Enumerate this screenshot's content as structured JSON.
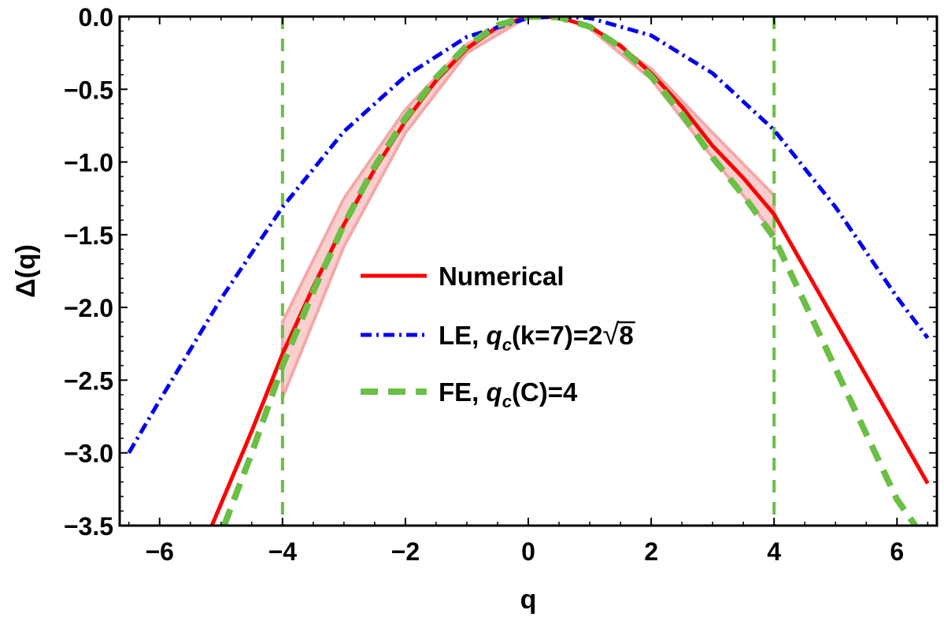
{
  "chart_data": {
    "type": "line",
    "xlabel": "q",
    "ylabel": "Δ(q)",
    "xlim": [
      -6.65,
      6.65
    ],
    "ylim": [
      -3.5,
      0.0
    ],
    "x_ticks": [
      {
        "value": -6,
        "label": "−6"
      },
      {
        "value": -4,
        "label": "−4"
      },
      {
        "value": -2,
        "label": "−2"
      },
      {
        "value": 0,
        "label": "0"
      },
      {
        "value": 2,
        "label": "2"
      },
      {
        "value": 4,
        "label": "4"
      },
      {
        "value": 6,
        "label": "6"
      }
    ],
    "y_ticks": [
      {
        "value": 0.0,
        "label": "0.0"
      },
      {
        "value": -0.5,
        "label": "−0.5"
      },
      {
        "value": -1.0,
        "label": "−1.0"
      },
      {
        "value": -1.5,
        "label": "−1.5"
      },
      {
        "value": -2.0,
        "label": "−2.0"
      },
      {
        "value": -2.5,
        "label": "−2.5"
      },
      {
        "value": -3.0,
        "label": "−3.0"
      },
      {
        "value": -3.5,
        "label": "−3.5"
      }
    ],
    "series": [
      {
        "name": "Numerical",
        "style": "solid",
        "color": "#ff0000",
        "x": [
          -5.15,
          -4.5,
          -4.0,
          -3.5,
          -3.0,
          -2.5,
          -2.0,
          -1.5,
          -1.0,
          -0.5,
          0.0,
          0.5,
          1.0,
          1.5,
          2.0,
          2.5,
          3.0,
          3.5,
          4.0,
          4.5,
          5.0,
          5.5,
          6.0,
          6.5
        ],
        "y": [
          -3.5,
          -2.85,
          -2.32,
          -1.86,
          -1.43,
          -1.05,
          -0.72,
          -0.44,
          -0.22,
          -0.07,
          0.0,
          -0.005,
          -0.07,
          -0.2,
          -0.39,
          -0.62,
          -0.89,
          -1.11,
          -1.36,
          -1.73,
          -2.1,
          -2.47,
          -2.84,
          -3.21
        ]
      },
      {
        "name": "LE, q_c(k=7)=2√8",
        "style": "dashdot",
        "color": "#0000ee",
        "x": [
          -6.5,
          -6.0,
          -5.0,
          -4.0,
          -3.0,
          -2.0,
          -1.0,
          0.0,
          0.5,
          1.0,
          2.0,
          3.0,
          4.0,
          5.0,
          6.0,
          6.5
        ],
        "y": [
          -3.0,
          -2.64,
          -1.94,
          -1.31,
          -0.79,
          -0.41,
          -0.14,
          -0.01,
          0.0,
          -0.01,
          -0.13,
          -0.39,
          -0.78,
          -1.31,
          -1.93,
          -2.21
        ]
      },
      {
        "name": "FE, q_c(C)=4",
        "style": "dashed",
        "color": "#6abf45",
        "x": [
          -4.95,
          -4.5,
          -4.0,
          -3.5,
          -3.0,
          -2.5,
          -2.0,
          -1.5,
          -1.0,
          -0.5,
          0.0,
          0.5,
          1.0,
          1.5,
          2.0,
          2.5,
          3.0,
          3.5,
          4.0,
          4.5,
          5.0,
          5.5,
          6.0,
          6.3
        ],
        "y": [
          -3.5,
          -3.0,
          -2.4,
          -1.89,
          -1.43,
          -1.03,
          -0.7,
          -0.42,
          -0.2,
          -0.06,
          0.0,
          -0.005,
          -0.07,
          -0.21,
          -0.41,
          -0.67,
          -0.97,
          -1.23,
          -1.52,
          -1.97,
          -2.42,
          -2.87,
          -3.32,
          -3.5
        ]
      }
    ],
    "reference_lines": [
      {
        "type": "vertical",
        "x": -4,
        "style": "dashed",
        "color": "#6abf45"
      },
      {
        "type": "vertical",
        "x": 4,
        "style": "dashed",
        "color": "#6abf45"
      }
    ],
    "uncertainty_bands": [
      {
        "series": "Numerical",
        "color": "#f4a8a8",
        "x": [
          -4,
          -3,
          -2,
          -1,
          0
        ],
        "upper": [
          -2.1,
          -1.25,
          -0.64,
          -0.19,
          0.0
        ],
        "lower": [
          -2.62,
          -1.58,
          -0.8,
          -0.25,
          0.0
        ]
      },
      {
        "series": "Numerical",
        "color": "#f4a8a8",
        "x": [
          1,
          2,
          3,
          4
        ],
        "upper": [
          -0.06,
          -0.36,
          -0.8,
          -1.23
        ],
        "lower": [
          -0.08,
          -0.43,
          -0.97,
          -1.49
        ]
      }
    ],
    "legend": {
      "placement": "center",
      "entries": [
        {
          "label": "Numerical",
          "main": "Numerical",
          "parts": [],
          "style": "solid",
          "color": "#ff0000"
        },
        {
          "label": "LE, q_c(k=7)=2√8",
          "main": "LE, ",
          "parts": [
            "q",
            "c",
            "(k=7)=2",
            "√",
            "8"
          ],
          "style": "dashdot",
          "color": "#0000ee"
        },
        {
          "label": "FE, q_c(C)=4",
          "main": "FE, ",
          "parts": [
            "q",
            "c",
            "(C)=4"
          ],
          "style": "dashed",
          "color": "#6abf45"
        }
      ]
    },
    "grid": false
  }
}
